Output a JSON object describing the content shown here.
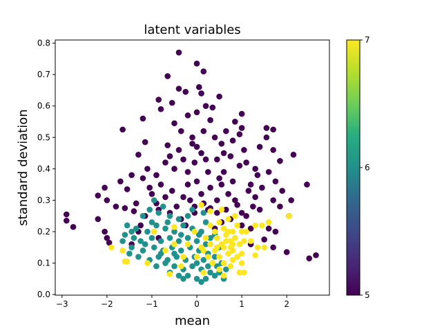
{
  "chart_data": {
    "type": "scatter",
    "title": "latent variables",
    "xlabel": "mean",
    "ylabel": "standard deviation",
    "xlim": [
      -3.15,
      2.95
    ],
    "ylim": [
      -0.002,
      0.81
    ],
    "x_ticks": [
      -3,
      -2,
      -1,
      0,
      1,
      2
    ],
    "y_ticks": [
      0.0,
      0.1,
      0.2,
      0.3,
      0.4,
      0.5,
      0.6,
      0.7,
      0.8
    ],
    "x_tick_labels": [
      "−3",
      "−2",
      "−1",
      "0",
      "1",
      "2"
    ],
    "y_tick_labels": [
      "0.0",
      "0.1",
      "0.2",
      "0.3",
      "0.4",
      "0.5",
      "0.6",
      "0.7",
      "0.8"
    ],
    "grid": false,
    "colorbar": {
      "colormap": "viridis",
      "range": [
        5,
        7
      ],
      "ticks": [
        5,
        6,
        7
      ],
      "tick_labels": [
        "5",
        "6",
        "7"
      ]
    },
    "series": [
      {
        "value": 5,
        "color": "#440154",
        "points": [
          [
            -0.4,
            0.77
          ],
          [
            0.0,
            0.735
          ],
          [
            0.15,
            0.71
          ],
          [
            -0.65,
            0.695
          ],
          [
            0.5,
            0.63
          ],
          [
            -0.4,
            0.655
          ],
          [
            -0.25,
            0.645
          ],
          [
            0.05,
            0.66
          ],
          [
            0.1,
            0.64
          ],
          [
            -0.85,
            0.62
          ],
          [
            0.35,
            0.595
          ],
          [
            -0.8,
            0.59
          ],
          [
            -0.55,
            0.61
          ],
          [
            0.2,
            0.6
          ],
          [
            0.3,
            0.555
          ],
          [
            1.0,
            0.575
          ],
          [
            0.85,
            0.55
          ],
          [
            -0.2,
            0.57
          ],
          [
            0.0,
            0.58
          ],
          [
            1.0,
            0.53
          ],
          [
            -1.2,
            0.56
          ],
          [
            -1.65,
            0.525
          ],
          [
            -0.5,
            0.545
          ],
          [
            1.7,
            0.525
          ],
          [
            1.55,
            0.53
          ],
          [
            0.95,
            0.51
          ],
          [
            0.15,
            0.52
          ],
          [
            0.65,
            0.52
          ],
          [
            -0.35,
            0.52
          ],
          [
            -0.1,
            0.5
          ],
          [
            1.55,
            0.5
          ],
          [
            -0.1,
            0.48
          ],
          [
            -1.15,
            0.485
          ],
          [
            -0.65,
            0.475
          ],
          [
            0.55,
            0.48
          ],
          [
            1.4,
            0.47
          ],
          [
            2.15,
            0.445
          ],
          [
            1.7,
            0.46
          ],
          [
            -1.3,
            0.445
          ],
          [
            -0.4,
            0.46
          ],
          [
            0.1,
            0.45
          ],
          [
            0.75,
            0.44
          ],
          [
            -0.7,
            0.42
          ],
          [
            1.85,
            0.425
          ],
          [
            -0.05,
            0.42
          ],
          [
            0.45,
            0.43
          ],
          [
            1.3,
            0.4
          ],
          [
            -1.1,
            0.4
          ],
          [
            -0.9,
            0.38
          ],
          [
            -0.5,
            0.4
          ],
          [
            0.95,
            0.41
          ],
          [
            1.6,
            0.39
          ],
          [
            0.25,
            0.39
          ],
          [
            -1.45,
            0.38
          ],
          [
            0.6,
            0.39
          ],
          [
            -1.2,
            0.37
          ],
          [
            1.75,
            0.36
          ],
          [
            -1.7,
            0.36
          ],
          [
            0.0,
            0.36
          ],
          [
            0.5,
            0.37
          ],
          [
            -0.8,
            0.35
          ],
          [
            1.2,
            0.35
          ],
          [
            2.45,
            0.35
          ],
          [
            -2.05,
            0.34
          ],
          [
            -0.2,
            0.35
          ],
          [
            0.8,
            0.36
          ],
          [
            1.45,
            0.34
          ],
          [
            0.3,
            0.34
          ],
          [
            -1.55,
            0.335
          ],
          [
            -0.55,
            0.33
          ],
          [
            1.9,
            0.33
          ],
          [
            -2.2,
            0.315
          ],
          [
            -1.0,
            0.32
          ],
          [
            0.1,
            0.32
          ],
          [
            0.7,
            0.32
          ],
          [
            1.3,
            0.31
          ],
          [
            -2.0,
            0.3
          ],
          [
            -0.3,
            0.31
          ],
          [
            2.1,
            0.3
          ],
          [
            1.7,
            0.3
          ],
          [
            -1.8,
            0.28
          ],
          [
            -1.35,
            0.29
          ],
          [
            0.45,
            0.3
          ],
          [
            -0.9,
            0.29
          ],
          [
            0.9,
            0.285
          ],
          [
            1.85,
            0.28
          ],
          [
            -1.6,
            0.275
          ],
          [
            -0.05,
            0.28
          ],
          [
            1.4,
            0.27
          ],
          [
            -1.4,
            0.265
          ],
          [
            0.3,
            0.275
          ],
          [
            -2.9,
            0.255
          ],
          [
            -1.15,
            0.25
          ],
          [
            2.05,
            0.25
          ],
          [
            -0.6,
            0.26
          ],
          [
            -2.9,
            0.235
          ],
          [
            -2.2,
            0.24
          ],
          [
            -1.25,
            0.22
          ],
          [
            1.0,
            0.26
          ],
          [
            -2.75,
            0.215
          ],
          [
            1.6,
            0.21
          ],
          [
            -0.35,
            0.24
          ],
          [
            -2.05,
            0.2
          ],
          [
            -1.3,
            0.2
          ],
          [
            -2.0,
            0.18
          ],
          [
            1.75,
            0.2
          ],
          [
            1.2,
            0.21
          ],
          [
            -0.85,
            0.18
          ],
          [
            -1.95,
            0.165
          ],
          [
            1.5,
            0.175
          ],
          [
            -1.45,
            0.16
          ],
          [
            1.0,
            0.22
          ],
          [
            2.0,
            0.135
          ],
          [
            1.2,
            0.16
          ],
          [
            2.5,
            0.115
          ],
          [
            2.65,
            0.125
          ],
          [
            1.7,
            0.15
          ],
          [
            0.55,
            0.23
          ],
          [
            -0.05,
            0.26
          ],
          [
            0.25,
            0.27
          ],
          [
            -0.15,
            0.3
          ],
          [
            0.65,
            0.27
          ],
          [
            0.4,
            0.21
          ],
          [
            1.1,
            0.25
          ],
          [
            -0.45,
            0.28
          ],
          [
            0.85,
            0.3
          ],
          [
            1.15,
            0.33
          ],
          [
            -0.7,
            0.31
          ],
          [
            0.2,
            0.43
          ],
          [
            0.6,
            0.45
          ],
          [
            -0.3,
            0.43
          ],
          [
            1.1,
            0.42
          ],
          [
            0.0,
            0.47
          ],
          [
            0.8,
            0.49
          ],
          [
            -0.6,
            0.44
          ],
          [
            0.4,
            0.5
          ],
          [
            1.05,
            0.46
          ],
          [
            -0.2,
            0.39
          ],
          [
            0.55,
            0.35
          ],
          [
            1.35,
            0.38
          ],
          [
            -1.05,
            0.34
          ],
          [
            0.15,
            0.29
          ],
          [
            0.75,
            0.24
          ],
          [
            -0.25,
            0.22
          ],
          [
            1.25,
            0.28
          ],
          [
            -0.85,
            0.27
          ],
          [
            0.45,
            0.26
          ]
        ]
      },
      {
        "value": 6,
        "color": "#21918c",
        "points": [
          [
            -1.2,
            0.25
          ],
          [
            -1.05,
            0.27
          ],
          [
            -0.85,
            0.26
          ],
          [
            -0.6,
            0.25
          ],
          [
            -0.4,
            0.24
          ],
          [
            -1.55,
            0.22
          ],
          [
            -1.35,
            0.21
          ],
          [
            -1.1,
            0.2
          ],
          [
            -0.9,
            0.22
          ],
          [
            -0.7,
            0.21
          ],
          [
            -0.5,
            0.2
          ],
          [
            -0.3,
            0.22
          ],
          [
            -0.1,
            0.21
          ],
          [
            0.1,
            0.2
          ],
          [
            -1.6,
            0.19
          ],
          [
            -1.4,
            0.18
          ],
          [
            -1.25,
            0.17
          ],
          [
            -1.0,
            0.18
          ],
          [
            -0.8,
            0.17
          ],
          [
            -0.6,
            0.18
          ],
          [
            -0.4,
            0.17
          ],
          [
            -0.2,
            0.18
          ],
          [
            0.0,
            0.17
          ],
          [
            0.2,
            0.16
          ],
          [
            -1.45,
            0.15
          ],
          [
            -1.2,
            0.14
          ],
          [
            -0.95,
            0.15
          ],
          [
            -0.75,
            0.14
          ],
          [
            -0.55,
            0.15
          ],
          [
            -0.35,
            0.14
          ],
          [
            -0.15,
            0.15
          ],
          [
            0.05,
            0.14
          ],
          [
            0.25,
            0.13
          ],
          [
            0.4,
            0.12
          ],
          [
            -1.3,
            0.12
          ],
          [
            -1.05,
            0.11
          ],
          [
            -0.85,
            0.12
          ],
          [
            -0.65,
            0.11
          ],
          [
            -0.45,
            0.12
          ],
          [
            -0.25,
            0.11
          ],
          [
            -0.05,
            0.12
          ],
          [
            0.15,
            0.11
          ],
          [
            0.35,
            0.1
          ],
          [
            0.55,
            0.1
          ],
          [
            -0.9,
            0.09
          ],
          [
            -0.7,
            0.1
          ],
          [
            -0.5,
            0.09
          ],
          [
            -0.3,
            0.08
          ],
          [
            -0.1,
            0.09
          ],
          [
            0.1,
            0.08
          ],
          [
            0.3,
            0.07
          ],
          [
            0.5,
            0.07
          ],
          [
            -0.6,
            0.07
          ],
          [
            -0.4,
            0.06
          ],
          [
            -0.2,
            0.06
          ],
          [
            0.0,
            0.05
          ],
          [
            0.2,
            0.05
          ],
          [
            0.4,
            0.06
          ],
          [
            0.6,
            0.05
          ],
          [
            0.1,
            0.04
          ],
          [
            -0.3,
            0.05
          ],
          [
            -1.0,
            0.23
          ],
          [
            -0.2,
            0.25
          ],
          [
            0.2,
            0.23
          ],
          [
            0.4,
            0.19
          ],
          [
            0.5,
            0.15
          ],
          [
            0.3,
            0.18
          ],
          [
            -1.5,
            0.13
          ],
          [
            -1.65,
            0.17
          ],
          [
            -0.95,
            0.3
          ],
          [
            -0.75,
            0.28
          ],
          [
            -0.1,
            0.27
          ],
          [
            0.15,
            0.26
          ],
          [
            -1.15,
            0.16
          ],
          [
            -0.5,
            0.13
          ],
          [
            0.45,
            0.09
          ],
          [
            0.65,
            0.08
          ],
          [
            -1.45,
            0.2
          ],
          [
            -0.65,
            0.23
          ],
          [
            0.0,
            0.1
          ],
          [
            0.25,
            0.09
          ],
          [
            -0.8,
            0.13
          ],
          [
            -0.35,
            0.19
          ],
          [
            0.05,
            0.19
          ]
        ]
      },
      {
        "value": 7,
        "color": "#fde725",
        "points": [
          [
            0.3,
            0.22
          ],
          [
            0.5,
            0.23
          ],
          [
            0.7,
            0.24
          ],
          [
            0.9,
            0.22
          ],
          [
            0.4,
            0.2
          ],
          [
            0.6,
            0.21
          ],
          [
            0.8,
            0.2
          ],
          [
            1.0,
            0.2
          ],
          [
            0.2,
            0.18
          ],
          [
            0.45,
            0.18
          ],
          [
            0.65,
            0.19
          ],
          [
            0.85,
            0.18
          ],
          [
            1.05,
            0.17
          ],
          [
            0.3,
            0.16
          ],
          [
            0.55,
            0.16
          ],
          [
            0.75,
            0.17
          ],
          [
            0.95,
            0.16
          ],
          [
            0.15,
            0.14
          ],
          [
            0.4,
            0.14
          ],
          [
            0.6,
            0.15
          ],
          [
            0.8,
            0.14
          ],
          [
            1.0,
            0.13
          ],
          [
            0.25,
            0.12
          ],
          [
            0.5,
            0.12
          ],
          [
            0.7,
            0.13
          ],
          [
            0.9,
            0.12
          ],
          [
            0.35,
            0.1
          ],
          [
            0.6,
            0.1
          ],
          [
            0.8,
            0.11
          ],
          [
            1.0,
            0.1
          ],
          [
            0.5,
            0.08
          ],
          [
            0.75,
            0.09
          ],
          [
            0.95,
            0.07
          ],
          [
            0.6,
            0.06
          ],
          [
            0.7,
            0.2
          ],
          [
            0.85,
            0.25
          ],
          [
            0.55,
            0.27
          ],
          [
            0.65,
            0.17
          ],
          [
            0.45,
            0.15
          ],
          [
            0.75,
            0.15
          ],
          [
            0.8,
            0.16
          ],
          [
            -1.6,
            0.105
          ],
          [
            -1.55,
            0.105
          ],
          [
            -1.9,
            0.15
          ],
          [
            -1.65,
            0.14
          ],
          [
            -0.5,
            0.16
          ],
          [
            -0.2,
            0.16
          ],
          [
            -0.05,
            0.2
          ],
          [
            -0.7,
            0.14
          ],
          [
            -1.1,
            0.1
          ],
          [
            -0.6,
            0.065
          ],
          [
            -0.35,
            0.09
          ],
          [
            -0.3,
            0.12
          ],
          [
            1.2,
            0.17
          ],
          [
            1.35,
            0.15
          ],
          [
            1.45,
            0.22
          ],
          [
            1.6,
            0.23
          ],
          [
            1.5,
            0.15
          ],
          [
            2.05,
            0.25
          ],
          [
            1.3,
            0.125
          ],
          [
            1.3,
            0.22
          ],
          [
            1.1,
            0.2
          ],
          [
            0.1,
            0.15
          ],
          [
            0.0,
            0.12
          ],
          [
            -0.95,
            0.2
          ],
          [
            -0.5,
            0.215
          ],
          [
            0.3,
            0.265
          ],
          [
            0.1,
            0.285
          ],
          [
            1.05,
            0.07
          ],
          [
            0.15,
            0.07
          ]
        ]
      }
    ]
  }
}
